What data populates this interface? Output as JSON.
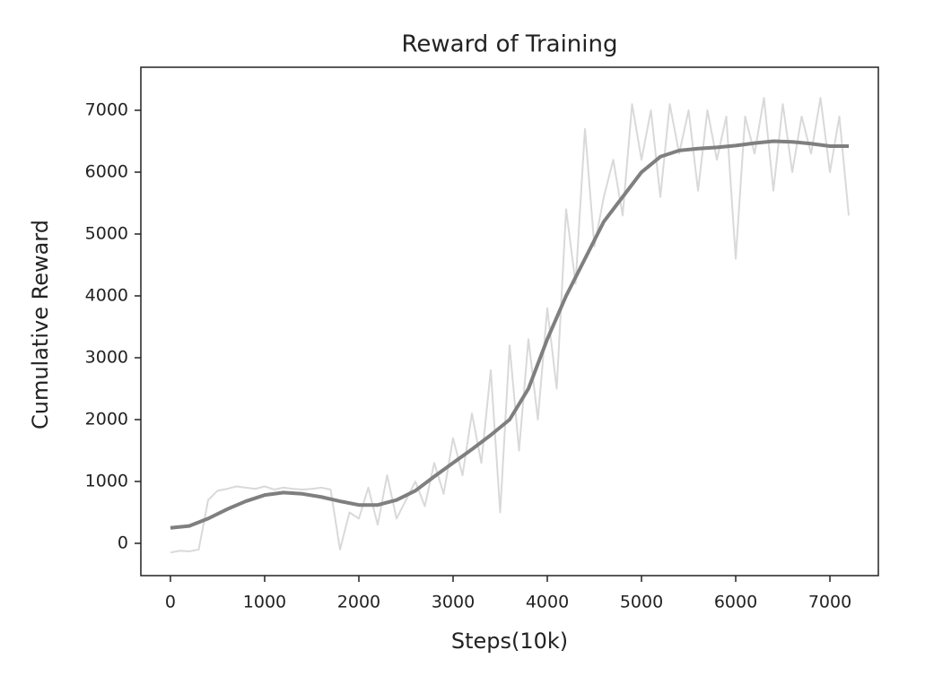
{
  "chart_data": {
    "type": "line",
    "title": "Reward of Training",
    "x_label": "Steps(10k)",
    "y_label": "Cumulative Reward",
    "xlim": [
      -314,
      7514
    ],
    "ylim": [
      -522,
      7696
    ],
    "xticks": [
      0,
      1000,
      2000,
      3000,
      4000,
      5000,
      6000,
      7000
    ],
    "yticks": [
      0,
      1000,
      2000,
      3000,
      4000,
      5000,
      6000,
      7000
    ],
    "grid": false,
    "series": [
      {
        "color": "#d9d9d9",
        "x": [
          0,
          100,
          200,
          300,
          400,
          500,
          600,
          700,
          800,
          900,
          1000,
          1100,
          1200,
          1300,
          1400,
          1500,
          1600,
          1700,
          1800,
          1900,
          2000,
          2100,
          2200,
          2300,
          2400,
          2500,
          2600,
          2700,
          2800,
          2900,
          3000,
          3100,
          3200,
          3300,
          3400,
          3500,
          3600,
          3700,
          3800,
          3900,
          4000,
          4100,
          4200,
          4300,
          4400,
          4500,
          4600,
          4700,
          4800,
          4900,
          5000,
          5100,
          5200,
          5300,
          5400,
          5500,
          5600,
          5700,
          5800,
          5900,
          6000,
          6100,
          6200,
          6300,
          6400,
          6500,
          6600,
          6700,
          6800,
          6900,
          7000,
          7100,
          7200
        ],
        "values": [
          -150,
          -120,
          -130,
          -100,
          700,
          850,
          880,
          920,
          900,
          880,
          920,
          870,
          900,
          880,
          870,
          880,
          900,
          870,
          -100,
          500,
          400,
          900,
          300,
          1100,
          400,
          700,
          1000,
          600,
          1300,
          800,
          1700,
          1100,
          2100,
          1300,
          2800,
          500,
          3200,
          1500,
          3300,
          2000,
          3800,
          2500,
          5400,
          4200,
          6700,
          4800,
          5600,
          6200,
          5300,
          7100,
          6200,
          7000,
          5600,
          7100,
          6300,
          7000,
          5700,
          7000,
          6200,
          6900,
          4600,
          6900,
          6300,
          7200,
          5700,
          7100,
          6000,
          6900,
          6300,
          7200,
          6000,
          6900,
          5300
        ]
      },
      {
        "color": "#7f7f7f",
        "x": [
          0,
          200,
          400,
          600,
          800,
          1000,
          1200,
          1400,
          1600,
          1800,
          2000,
          2200,
          2400,
          2600,
          2800,
          3000,
          3200,
          3400,
          3600,
          3800,
          4000,
          4200,
          4400,
          4600,
          4800,
          5000,
          5200,
          5400,
          5600,
          5800,
          6000,
          6200,
          6400,
          6600,
          6800,
          7000,
          7200
        ],
        "values": [
          250,
          280,
          400,
          550,
          680,
          780,
          820,
          800,
          750,
          680,
          620,
          620,
          700,
          850,
          1080,
          1300,
          1520,
          1750,
          2000,
          2500,
          3300,
          4000,
          4600,
          5200,
          5600,
          6000,
          6250,
          6350,
          6380,
          6400,
          6430,
          6470,
          6500,
          6490,
          6460,
          6420,
          6420
        ]
      }
    ]
  }
}
